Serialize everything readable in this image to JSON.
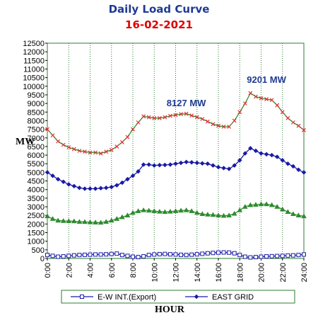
{
  "chart_data": {
    "type": "line",
    "title": "Daily Load Curve",
    "subtitle": "16-02-2021",
    "xlabel": "HOUR",
    "ylabel": "MW",
    "xlim": [
      0,
      24
    ],
    "ylim": [
      0,
      12500
    ],
    "x_ticks": [
      "0:00",
      "2:00",
      "4:00",
      "6:00",
      "8:00",
      "10:00",
      "12:00",
      "14:00",
      "16:00",
      "18:00",
      "20:00",
      "22:00",
      "24:00"
    ],
    "y_ticks": [
      0,
      500,
      1000,
      1500,
      2000,
      2500,
      3000,
      3500,
      4000,
      4500,
      5000,
      5500,
      6000,
      6500,
      7000,
      7500,
      8000,
      8500,
      9000,
      9500,
      10000,
      10500,
      11000,
      11500,
      12000,
      12500
    ],
    "x": [
      0,
      0.5,
      1,
      1.5,
      2,
      2.5,
      3,
      3.5,
      4,
      4.5,
      5,
      5.5,
      6,
      6.5,
      7,
      7.5,
      8,
      8.5,
      9,
      9.5,
      10,
      10.5,
      11,
      11.5,
      12,
      12.5,
      13,
      13.5,
      14,
      14.5,
      15,
      15.5,
      16,
      16.5,
      17,
      17.5,
      18,
      18.5,
      19,
      19.5,
      20,
      20.5,
      21,
      21.5,
      22,
      22.5,
      23,
      23.5,
      24
    ],
    "series": [
      {
        "name": "E-W INT.(Export)",
        "color": "#1a1aa6",
        "marker": "square",
        "values": [
          200,
          150,
          100,
          120,
          150,
          180,
          200,
          210,
          220,
          230,
          230,
          240,
          260,
          280,
          200,
          150,
          100,
          80,
          120,
          200,
          230,
          250,
          260,
          240,
          230,
          210,
          200,
          220,
          240,
          270,
          300,
          320,
          340,
          350,
          340,
          300,
          200,
          100,
          60,
          80,
          100,
          120,
          130,
          140,
          150,
          170,
          180,
          200,
          230
        ]
      },
      {
        "name": "EAST GRID",
        "color": "#1a1aa6",
        "marker": "diamond",
        "values": [
          5000,
          4800,
          4600,
          4450,
          4300,
          4200,
          4100,
          4050,
          4050,
          4050,
          4080,
          4100,
          4150,
          4250,
          4400,
          4600,
          4800,
          5050,
          5450,
          5450,
          5400,
          5420,
          5430,
          5450,
          5500,
          5550,
          5600,
          5580,
          5550,
          5520,
          5500,
          5400,
          5300,
          5250,
          5200,
          5400,
          5700,
          6100,
          6400,
          6250,
          6100,
          6050,
          6000,
          5900,
          5700,
          5500,
          5350,
          5150,
          5000
        ]
      },
      {
        "name": "",
        "color": "#2e8b2e",
        "marker": "triangle",
        "values": [
          2450,
          2300,
          2200,
          2180,
          2170,
          2160,
          2130,
          2120,
          2100,
          2090,
          2080,
          2130,
          2200,
          2300,
          2400,
          2500,
          2650,
          2750,
          2800,
          2780,
          2750,
          2720,
          2700,
          2720,
          2750,
          2780,
          2800,
          2750,
          2650,
          2580,
          2550,
          2530,
          2500,
          2480,
          2500,
          2600,
          2800,
          3000,
          3100,
          3120,
          3150,
          3150,
          3100,
          3000,
          2850,
          2700,
          2580,
          2500,
          2450
        ]
      },
      {
        "name": "",
        "color": "#e03030",
        "marker": "cross",
        "values": [
          7500,
          7150,
          6800,
          6600,
          6450,
          6350,
          6250,
          6200,
          6150,
          6150,
          6100,
          6200,
          6300,
          6500,
          6750,
          7050,
          7500,
          7900,
          8250,
          8200,
          8150,
          8150,
          8200,
          8280,
          8330,
          8380,
          8400,
          8300,
          8200,
          8100,
          7950,
          7800,
          7700,
          7650,
          7650,
          8000,
          8500,
          9000,
          9600,
          9400,
          9300,
          9250,
          9200,
          8900,
          8500,
          8150,
          7900,
          7700,
          7450
        ]
      }
    ],
    "annotations": [
      {
        "text": "8127 MW",
        "x": 13,
        "y": 8850
      },
      {
        "text": "9201 MW",
        "x": 20.5,
        "y": 10200
      }
    ],
    "legend_entries": [
      "E-W INT.(Export)",
      "EAST GRID"
    ],
    "legend_position": "bottom",
    "grid": "vertical"
  }
}
